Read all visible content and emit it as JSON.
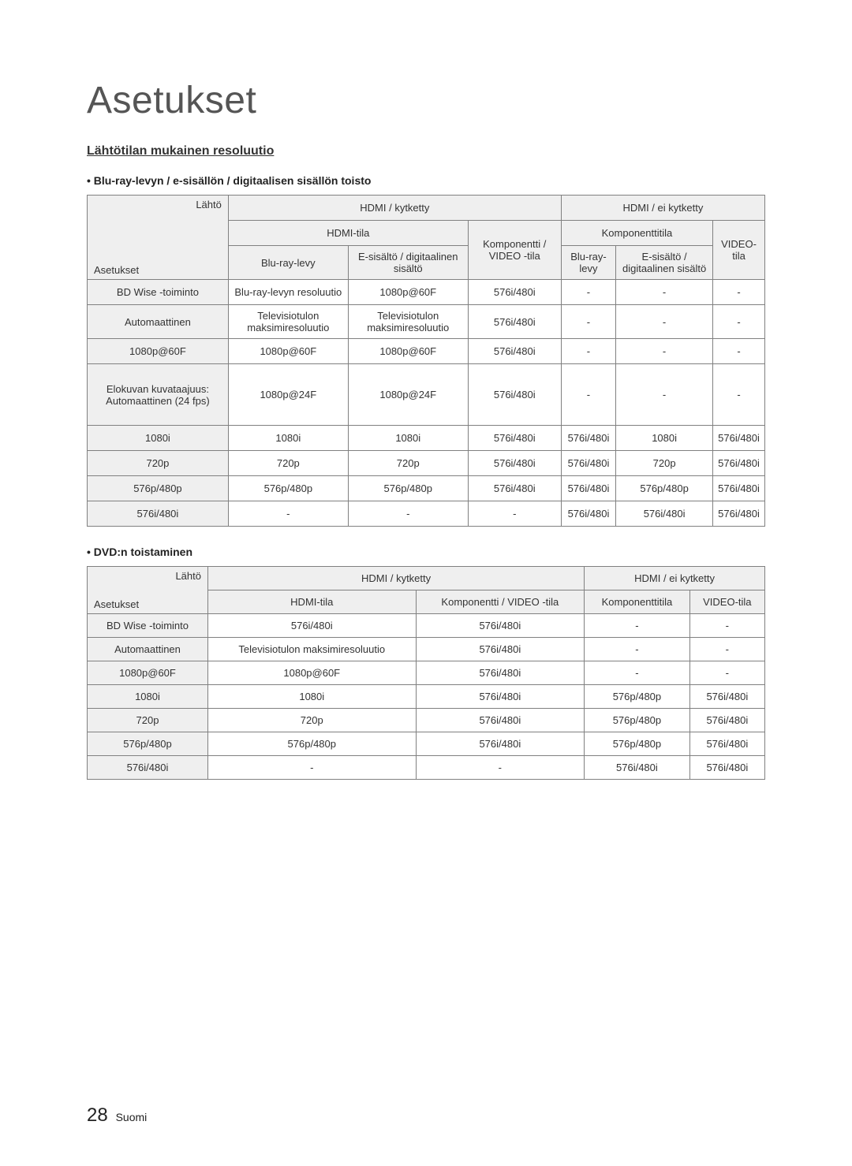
{
  "page": {
    "title": "Asetukset",
    "subtitle": "Lähtötilan mukainen resoluutio",
    "footer_page": "28",
    "footer_lang": "Suomi"
  },
  "table1": {
    "heading": "Blu-ray-levyn / e-sisällön / digitaalisen sisällön toisto",
    "corner_top": "Lähtö",
    "corner_bottom": "Asetukset",
    "hdr_hdmi_on": "HDMI / kytketty",
    "hdr_hdmi_off": "HDMI / ei kytketty",
    "hdr_hdmi_mode": "HDMI-tila",
    "hdr_component_mode": "Komponenttitila",
    "hdr_blu": "Blu-ray-levy",
    "hdr_econtent": "E-sisältö / digitaalinen sisältö",
    "hdr_comp_video": "Komponentti / VIDEO -tila",
    "hdr_video": "VIDEO-tila",
    "rows": [
      {
        "label": "BD Wise -toiminto",
        "c1": "Blu-ray-levyn resoluutio",
        "c2": "1080p@60F",
        "c3": "576i/480i",
        "c4": "-",
        "c5": "-",
        "c6": "-"
      },
      {
        "label": "Automaattinen",
        "c1": "Televisiotulon maksimiresoluutio",
        "c2": "Televisiotulon maksimiresoluutio",
        "c3": "576i/480i",
        "c4": "-",
        "c5": "-",
        "c6": "-"
      },
      {
        "label": "1080p@60F",
        "c1": "1080p@60F",
        "c2": "1080p@60F",
        "c3": "576i/480i",
        "c4": "-",
        "c5": "-",
        "c6": "-"
      },
      {
        "label": "Elokuvan kuvataajuus: Automaattinen (24 fps)",
        "c1": "1080p@24F",
        "c2": "1080p@24F",
        "c3": "576i/480i",
        "c4": "-",
        "c5": "-",
        "c6": "-"
      },
      {
        "label": "1080i",
        "c1": "1080i",
        "c2": "1080i",
        "c3": "576i/480i",
        "c4": "576i/480i",
        "c5": "1080i",
        "c6": "576i/480i"
      },
      {
        "label": "720p",
        "c1": "720p",
        "c2": "720p",
        "c3": "576i/480i",
        "c4": "576i/480i",
        "c5": "720p",
        "c6": "576i/480i"
      },
      {
        "label": "576p/480p",
        "c1": "576p/480p",
        "c2": "576p/480p",
        "c3": "576i/480i",
        "c4": "576i/480i",
        "c5": "576p/480p",
        "c6": "576i/480i"
      },
      {
        "label": "576i/480i",
        "c1": "-",
        "c2": "-",
        "c3": "-",
        "c4": "576i/480i",
        "c5": "576i/480i",
        "c6": "576i/480i"
      }
    ]
  },
  "table2": {
    "heading": "DVD:n toistaminen",
    "corner_top": "Lähtö",
    "corner_bottom": "Asetukset",
    "hdr_hdmi_on": "HDMI / kytketty",
    "hdr_hdmi_off": "HDMI / ei kytketty",
    "hdr_hdmi_mode": "HDMI-tila",
    "hdr_comp_video": "Komponentti / VIDEO -tila",
    "hdr_component_mode": "Komponenttitila",
    "hdr_video": "VIDEO-tila",
    "rows": [
      {
        "label": "BD Wise -toiminto",
        "c1": "576i/480i",
        "c2": "576i/480i",
        "c3": "-",
        "c4": "-"
      },
      {
        "label": "Automaattinen",
        "c1": "Televisiotulon maksimiresoluutio",
        "c2": "576i/480i",
        "c3": "-",
        "c4": "-"
      },
      {
        "label": "1080p@60F",
        "c1": "1080p@60F",
        "c2": "576i/480i",
        "c3": "-",
        "c4": "-"
      },
      {
        "label": "1080i",
        "c1": "1080i",
        "c2": "576i/480i",
        "c3": "576p/480p",
        "c4": "576i/480i"
      },
      {
        "label": "720p",
        "c1": "720p",
        "c2": "576i/480i",
        "c3": "576p/480p",
        "c4": "576i/480i"
      },
      {
        "label": "576p/480p",
        "c1": "576p/480p",
        "c2": "576i/480i",
        "c3": "576p/480p",
        "c4": "576i/480i"
      },
      {
        "label": "576i/480i",
        "c1": "-",
        "c2": "-",
        "c3": "576i/480i",
        "c4": "576i/480i"
      }
    ]
  }
}
